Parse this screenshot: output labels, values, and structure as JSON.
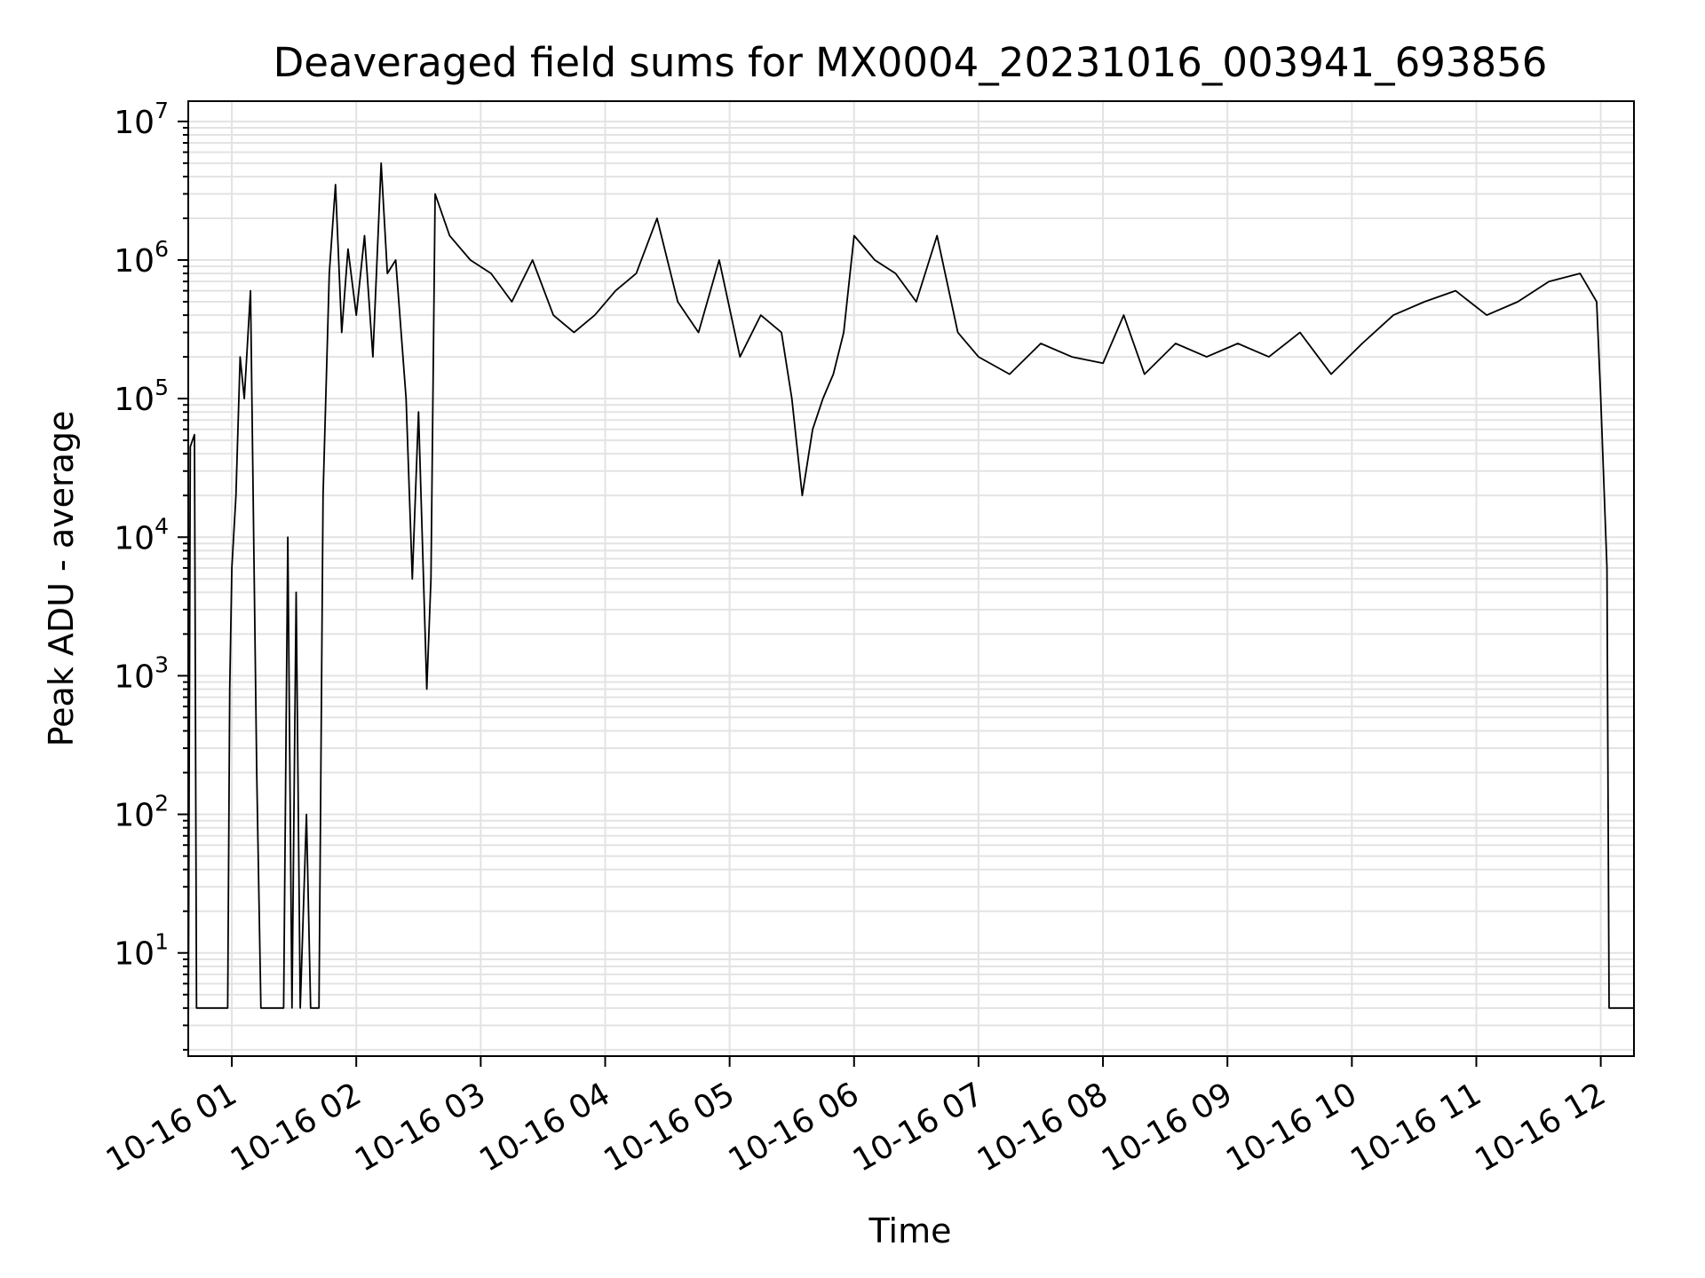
{
  "chart_data": {
    "type": "line",
    "title": "Deaveraged field sums for MX0004_20231016_003941_693856",
    "xlabel": "Time",
    "ylabel": "Peak ADU - average",
    "yscale": "log",
    "ylim": [
      1.8,
      14000000
    ],
    "xlim": [
      "2023-10-16 00:39",
      "2023-10-16 12:16"
    ],
    "grid": true,
    "line_color": "#000000",
    "x_ticks": [
      "10-16 01",
      "10-16 02",
      "10-16 03",
      "10-16 04",
      "10-16 05",
      "10-16 06",
      "10-16 07",
      "10-16 08",
      "10-16 09",
      "10-16 10",
      "10-16 11",
      "10-16 12"
    ],
    "y_ticks": [
      {
        "base": "10",
        "exp": "1"
      },
      {
        "base": "10",
        "exp": "2"
      },
      {
        "base": "10",
        "exp": "3"
      },
      {
        "base": "10",
        "exp": "4"
      },
      {
        "base": "10",
        "exp": "5"
      },
      {
        "base": "10",
        "exp": "6"
      },
      {
        "base": "10",
        "exp": "7"
      }
    ],
    "series": [
      {
        "values": [
          [
            "2023-10-16 00:39",
            2
          ],
          [
            "2023-10-16 00:40",
            45000
          ],
          [
            "2023-10-16 00:42",
            55000
          ],
          [
            "2023-10-16 00:43",
            4
          ],
          [
            "2023-10-16 00:58",
            4
          ],
          [
            "2023-10-16 00:59",
            800
          ],
          [
            "2023-10-16 01:00",
            6000
          ],
          [
            "2023-10-16 01:02",
            20000
          ],
          [
            "2023-10-16 01:04",
            200000
          ],
          [
            "2023-10-16 01:06",
            100000
          ],
          [
            "2023-10-16 01:09",
            600000
          ],
          [
            "2023-10-16 01:12",
            200
          ],
          [
            "2023-10-16 01:14",
            4
          ],
          [
            "2023-10-16 01:25",
            4
          ],
          [
            "2023-10-16 01:27",
            10000
          ],
          [
            "2023-10-16 01:29",
            4
          ],
          [
            "2023-10-16 01:31",
            4000
          ],
          [
            "2023-10-16 01:33",
            4
          ],
          [
            "2023-10-16 01:36",
            100
          ],
          [
            "2023-10-16 01:38",
            4
          ],
          [
            "2023-10-16 01:42",
            4
          ],
          [
            "2023-10-16 01:44",
            20000
          ],
          [
            "2023-10-16 01:47",
            800000
          ],
          [
            "2023-10-16 01:50",
            3500000
          ],
          [
            "2023-10-16 01:53",
            300000
          ],
          [
            "2023-10-16 01:56",
            1200000
          ],
          [
            "2023-10-16 02:00",
            400000
          ],
          [
            "2023-10-16 02:04",
            1500000
          ],
          [
            "2023-10-16 02:08",
            200000
          ],
          [
            "2023-10-16 02:12",
            5000000
          ],
          [
            "2023-10-16 02:15",
            800000
          ],
          [
            "2023-10-16 02:19",
            1000000
          ],
          [
            "2023-10-16 02:24",
            100000
          ],
          [
            "2023-10-16 02:27",
            5000
          ],
          [
            "2023-10-16 02:30",
            80000
          ],
          [
            "2023-10-16 02:34",
            800
          ],
          [
            "2023-10-16 02:36",
            5000
          ],
          [
            "2023-10-16 02:38",
            3000000
          ],
          [
            "2023-10-16 02:45",
            1500000
          ],
          [
            "2023-10-16 02:55",
            1000000
          ],
          [
            "2023-10-16 03:05",
            800000
          ],
          [
            "2023-10-16 03:15",
            500000
          ],
          [
            "2023-10-16 03:25",
            1000000
          ],
          [
            "2023-10-16 03:35",
            400000
          ],
          [
            "2023-10-16 03:45",
            300000
          ],
          [
            "2023-10-16 03:55",
            400000
          ],
          [
            "2023-10-16 04:05",
            600000
          ],
          [
            "2023-10-16 04:15",
            800000
          ],
          [
            "2023-10-16 04:25",
            2000000
          ],
          [
            "2023-10-16 04:35",
            500000
          ],
          [
            "2023-10-16 04:45",
            300000
          ],
          [
            "2023-10-16 04:55",
            1000000
          ],
          [
            "2023-10-16 05:05",
            200000
          ],
          [
            "2023-10-16 05:15",
            400000
          ],
          [
            "2023-10-16 05:25",
            300000
          ],
          [
            "2023-10-16 05:30",
            100000
          ],
          [
            "2023-10-16 05:35",
            20000
          ],
          [
            "2023-10-16 05:40",
            60000
          ],
          [
            "2023-10-16 05:45",
            100000
          ],
          [
            "2023-10-16 05:50",
            150000
          ],
          [
            "2023-10-16 05:55",
            300000
          ],
          [
            "2023-10-16 06:00",
            1500000
          ],
          [
            "2023-10-16 06:10",
            1000000
          ],
          [
            "2023-10-16 06:20",
            800000
          ],
          [
            "2023-10-16 06:30",
            500000
          ],
          [
            "2023-10-16 06:40",
            1500000
          ],
          [
            "2023-10-16 06:50",
            300000
          ],
          [
            "2023-10-16 07:00",
            200000
          ],
          [
            "2023-10-16 07:15",
            150000
          ],
          [
            "2023-10-16 07:30",
            250000
          ],
          [
            "2023-10-16 07:45",
            200000
          ],
          [
            "2023-10-16 08:00",
            180000
          ],
          [
            "2023-10-16 08:10",
            400000
          ],
          [
            "2023-10-16 08:20",
            150000
          ],
          [
            "2023-10-16 08:35",
            250000
          ],
          [
            "2023-10-16 08:50",
            200000
          ],
          [
            "2023-10-16 09:05",
            250000
          ],
          [
            "2023-10-16 09:20",
            200000
          ],
          [
            "2023-10-16 09:35",
            300000
          ],
          [
            "2023-10-16 09:50",
            150000
          ],
          [
            "2023-10-16 10:05",
            250000
          ],
          [
            "2023-10-16 10:20",
            400000
          ],
          [
            "2023-10-16 10:35",
            500000
          ],
          [
            "2023-10-16 10:50",
            600000
          ],
          [
            "2023-10-16 11:05",
            400000
          ],
          [
            "2023-10-16 11:20",
            500000
          ],
          [
            "2023-10-16 11:35",
            700000
          ],
          [
            "2023-10-16 11:50",
            800000
          ],
          [
            "2023-10-16 11:58",
            500000
          ],
          [
            "2023-10-16 12:00",
            100000
          ],
          [
            "2023-10-16 12:03",
            6000
          ],
          [
            "2023-10-16 12:04",
            4
          ],
          [
            "2023-10-16 12:16",
            4
          ]
        ]
      }
    ]
  }
}
